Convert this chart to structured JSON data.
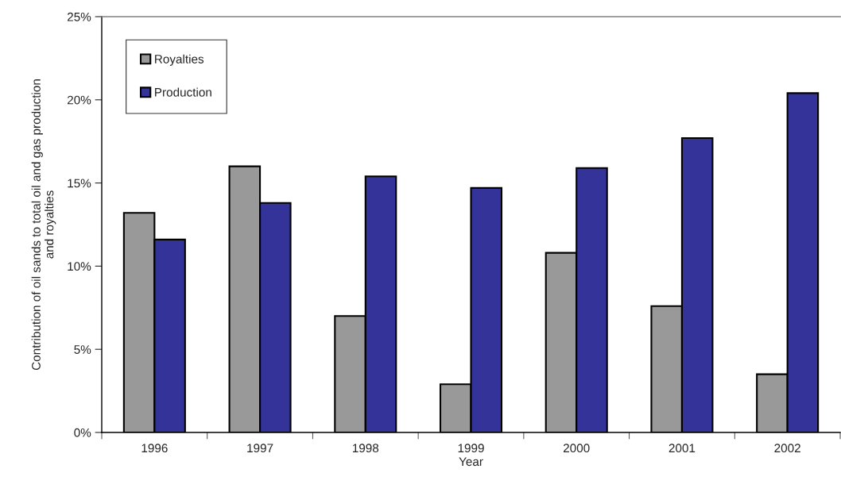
{
  "chart_data": {
    "type": "bar",
    "xlabel": "Year",
    "ylabel": "Contribution of oil sands to total oil and gas production\nand royalties",
    "categories": [
      "1996",
      "1997",
      "1998",
      "1999",
      "2000",
      "2001",
      "2002"
    ],
    "series": [
      {
        "name": "Royalties",
        "color": "#999999",
        "values": [
          13.2,
          16.0,
          7.0,
          2.9,
          10.8,
          7.6,
          3.5
        ]
      },
      {
        "name": "Production",
        "color": "#333399",
        "values": [
          11.6,
          13.8,
          15.4,
          14.7,
          15.9,
          17.7,
          20.4
        ]
      }
    ],
    "ylim": [
      0,
      25
    ],
    "yticks": [
      {
        "value": 0,
        "label": "0%"
      },
      {
        "value": 5,
        "label": "5%"
      },
      {
        "value": 10,
        "label": "10%"
      },
      {
        "value": 15,
        "label": "15%"
      },
      {
        "value": 20,
        "label": "20%"
      },
      {
        "value": 25,
        "label": "25%"
      }
    ],
    "grid": false,
    "legend": "top left"
  }
}
